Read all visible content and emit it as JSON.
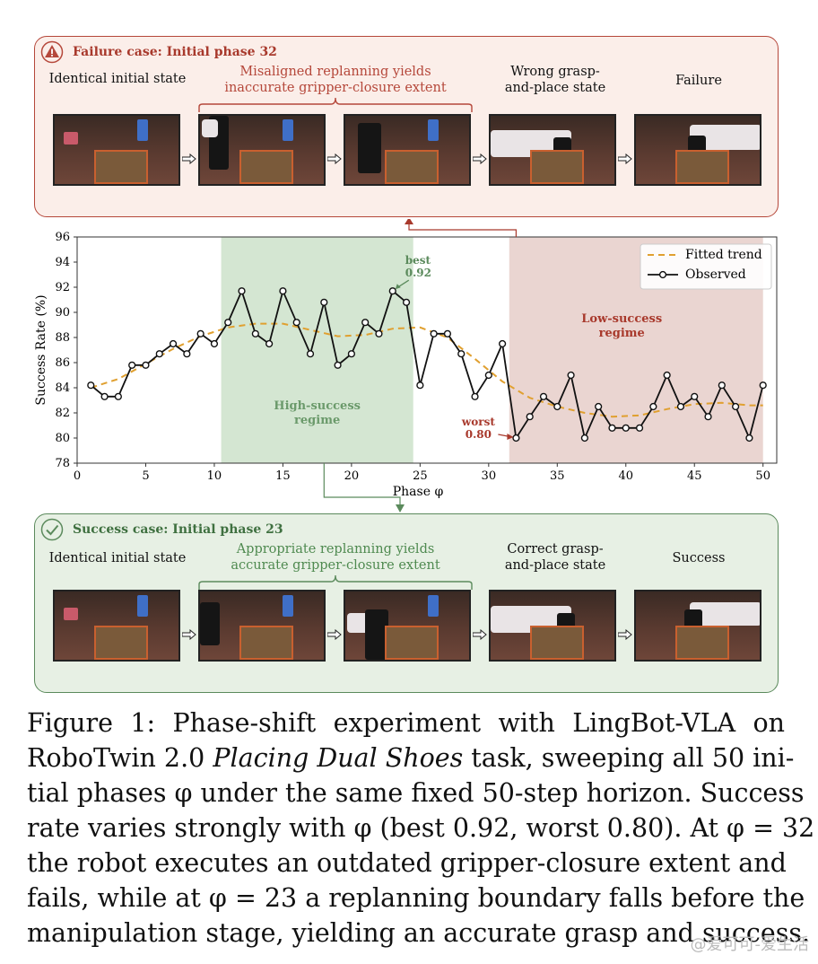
{
  "failure_panel": {
    "title": "Failure case: Initial phase 32",
    "label_1": "Identical initial state",
    "mid_line1": "Misaligned replanning yields",
    "mid_line2": "inaccurate gripper-closure extent",
    "label_4_line1": "Wrong grasp-",
    "label_4_line2": "and-place state",
    "label_5": "Failure",
    "icon": "warning-icon",
    "color": "#b5473a"
  },
  "success_panel": {
    "title": "Success case: Initial phase 23",
    "label_1": "Identical initial state",
    "mid_line1": "Appropriate replanning yields",
    "mid_line2": "accurate gripper-closure extent",
    "label_4_line1": "Correct grasp-",
    "label_4_line2": "and-place state",
    "label_5": "Success",
    "icon": "check-icon",
    "color": "#5b8a5c"
  },
  "chart_data": {
    "type": "line",
    "xlabel": "Phase φ",
    "ylabel": "Success Rate (%)",
    "xlim": [
      0,
      51
    ],
    "ylim": [
      78,
      96
    ],
    "xticks": [
      0,
      5,
      10,
      15,
      20,
      25,
      30,
      35,
      40,
      45,
      50
    ],
    "yticks": [
      78,
      80,
      82,
      84,
      86,
      88,
      90,
      92,
      94,
      96
    ],
    "legend_position": "top-right",
    "series": [
      {
        "name": "Observed",
        "x": [
          1,
          2,
          3,
          4,
          5,
          6,
          7,
          8,
          9,
          10,
          11,
          12,
          13,
          14,
          15,
          16,
          17,
          18,
          19,
          20,
          21,
          22,
          23,
          24,
          25,
          26,
          27,
          28,
          29,
          30,
          31,
          32,
          33,
          34,
          35,
          36,
          37,
          38,
          39,
          40,
          41,
          42,
          43,
          44,
          45,
          46,
          47,
          48,
          49,
          50
        ],
        "values": [
          84.2,
          83.3,
          83.3,
          85.8,
          85.8,
          86.7,
          87.5,
          86.7,
          88.3,
          87.5,
          89.2,
          91.7,
          88.3,
          87.5,
          91.7,
          89.2,
          86.7,
          90.8,
          85.8,
          86.7,
          89.2,
          88.3,
          91.7,
          90.8,
          84.2,
          88.3,
          88.3,
          86.7,
          83.3,
          85.0,
          87.5,
          80.0,
          81.7,
          83.3,
          82.5,
          85.0,
          80.0,
          82.5,
          80.8,
          80.8,
          80.8,
          82.5,
          85.0,
          82.5,
          83.3,
          81.7,
          84.2,
          82.5,
          80.0,
          84.2
        ],
        "color": "#111111"
      },
      {
        "name": "Fitted trend",
        "x": [
          1,
          3,
          5,
          7,
          9,
          11,
          13,
          15,
          17,
          19,
          21,
          23,
          25,
          27,
          29,
          31,
          33,
          35,
          37,
          39,
          41,
          43,
          45,
          47,
          49,
          50
        ],
        "values": [
          84.0,
          84.7,
          85.9,
          87.1,
          88.1,
          88.8,
          89.1,
          89.1,
          88.6,
          88.1,
          88.2,
          88.7,
          88.8,
          88.0,
          86.3,
          84.5,
          83.2,
          82.5,
          82.0,
          81.7,
          81.8,
          82.3,
          82.7,
          82.8,
          82.6,
          82.6
        ],
        "color": "#e0a030"
      }
    ],
    "regions": [
      {
        "label_line1": "High-success",
        "label_line2": "regime",
        "x_start": 10.5,
        "x_end": 24.5,
        "color": "#d4e6d2",
        "text_color": "#6b9a6b"
      },
      {
        "label_line1": "Low-success",
        "label_line2": "regime",
        "x_start": 31.5,
        "x_end": 50,
        "color": "#ead5d1",
        "text_color": "#a8392c"
      }
    ],
    "annotations": [
      {
        "label_line1": "best",
        "label_line2": "0.92",
        "x": 23,
        "y": 91.7,
        "color": "#5b8a5c"
      },
      {
        "label_line1": "worst",
        "label_line2": "0.80",
        "x": 32,
        "y": 80.0,
        "color": "#a8392c"
      }
    ]
  },
  "caption": {
    "line1": "Figure 1: Phase-shift experiment with LingBot-VLA on",
    "line2a": "RoboTwin 2.0 ",
    "line2b": "Placing Dual Shoes",
    "line2c": " task, sweeping all 50 ini-",
    "line3": "tial phases φ under the same fixed 50-step horizon. Success",
    "line4": "rate varies strongly with φ (best 0.92, worst 0.80). At φ = 32",
    "line5": "the robot executes an outdated gripper-closure extent and",
    "line6": "fails, while at φ = 23 a replanning boundary falls before the",
    "line7": "manipulation stage, yielding an accurate grasp and success."
  },
  "watermark": "@爱可可-爱生活"
}
